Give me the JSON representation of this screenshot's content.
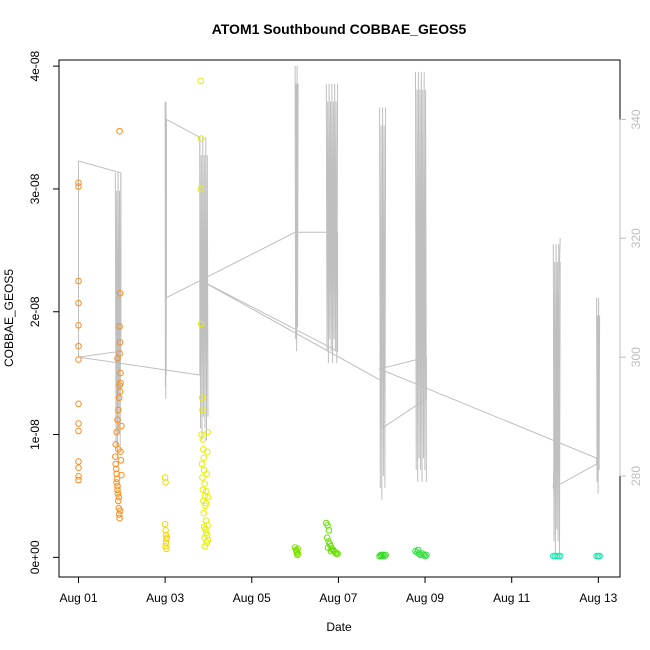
{
  "chart_data": {
    "type": "scatter",
    "title": "ATOM1 Southbound COBBAE_GEOS5",
    "xlabel": "Date",
    "ylabel": "COBBAE_GEOS5",
    "x_ticks": [
      "Aug 01",
      "Aug 03",
      "Aug 05",
      "Aug 07",
      "Aug 09",
      "Aug 11",
      "Aug 13"
    ],
    "x_tick_days": [
      1,
      3,
      5,
      7,
      9,
      11,
      13
    ],
    "xlim_days": [
      0.55,
      13.5
    ],
    "y_ticks": [
      "0e+00",
      "1e-08",
      "2e-08",
      "3e-08",
      "4e-08"
    ],
    "y_tick_values": [
      0,
      1e-08,
      2e-08,
      3e-08,
      4e-08
    ],
    "ylim": [
      -1.6e-09,
      4.05e-08
    ],
    "y2_ticks": [
      "280",
      "300",
      "320",
      "340"
    ],
    "y2_tick_values": [
      280,
      300,
      320,
      340
    ],
    "y2lim": [
      263,
      350
    ],
    "grid": false,
    "colors": {
      "line": "#bfbfbf",
      "axis": "#000000",
      "right_axis": "#bdbdbd"
    },
    "series": [
      {
        "color": "#ff8c1a",
        "points": [
          [
            1.0,
            3.05e-08
          ],
          [
            1.0,
            3.02e-08
          ],
          [
            1.0,
            2.25e-08
          ],
          [
            1.0,
            2.07e-08
          ],
          [
            1.0,
            1.89e-08
          ],
          [
            1.0,
            1.72e-08
          ],
          [
            1.0,
            1.61e-08
          ],
          [
            1.0,
            1.25e-08
          ],
          [
            1.0,
            1.09e-08
          ],
          [
            1.0,
            1.03e-08
          ],
          [
            1.0,
            7.8e-09
          ],
          [
            1.0,
            7.3e-09
          ],
          [
            1.0,
            6.6e-09
          ],
          [
            1.0,
            6.3e-09
          ],
          [
            1.85,
            8.2e-09
          ],
          [
            1.86,
            7.6e-09
          ],
          [
            1.87,
            7.2e-09
          ],
          [
            1.88,
            6.8e-09
          ],
          [
            1.89,
            6.4e-09
          ],
          [
            1.9,
            5.8e-09
          ],
          [
            1.91,
            5.2e-09
          ],
          [
            1.92,
            4.6e-09
          ],
          [
            1.93,
            4e-09
          ],
          [
            1.94,
            3.5e-09
          ],
          [
            1.95,
            3.2e-09
          ],
          [
            1.86,
            9.2e-09
          ],
          [
            1.88,
            1.02e-08
          ],
          [
            1.9,
            1.12e-08
          ],
          [
            1.92,
            1.2e-08
          ],
          [
            1.94,
            1.3e-08
          ],
          [
            1.95,
            1.4e-08
          ],
          [
            1.96,
            1.35e-08
          ],
          [
            1.97,
            1.5e-08
          ],
          [
            1.9,
            1.62e-08
          ],
          [
            1.95,
            1.66e-08
          ],
          [
            1.96,
            1.75e-08
          ],
          [
            1.95,
            1.88e-08
          ],
          [
            1.96,
            2.15e-08
          ],
          [
            1.95,
            3.47e-08
          ],
          [
            1.97,
            8.6e-09
          ],
          [
            1.98,
            7.9e-09
          ],
          [
            1.88,
            6.1e-09
          ],
          [
            1.9,
            5.5e-09
          ],
          [
            1.93,
            4.9e-09
          ],
          [
            1.96,
            3.8e-09
          ],
          [
            1.99,
            6.7e-09
          ],
          [
            1.99,
            1.07e-08
          ],
          [
            1.97,
            1.42e-08
          ],
          [
            1.92,
            8.8e-09
          ]
        ]
      },
      {
        "color": "#f5d800",
        "points": [
          [
            3.0,
            6.5e-09
          ],
          [
            3.01,
            6.1e-09
          ],
          [
            3.0,
            2.7e-09
          ],
          [
            3.01,
            2.2e-09
          ],
          [
            3.02,
            1.8e-09
          ],
          [
            3.03,
            1.5e-09
          ],
          [
            3.02,
            1.2e-09
          ],
          [
            3.01,
            9e-10
          ],
          [
            3.03,
            7e-10
          ],
          [
            3.04,
            1.6e-09
          ]
        ]
      },
      {
        "color": "#e6f000",
        "points": [
          [
            3.82,
            3.88e-08
          ],
          [
            3.83,
            3.41e-08
          ],
          [
            3.82,
            3e-08
          ],
          [
            3.83,
            1.9e-08
          ],
          [
            3.85,
            1.3e-08
          ],
          [
            3.86,
            1.2e-08
          ],
          [
            3.84,
            1e-08
          ],
          [
            3.87,
            9.6e-09
          ],
          [
            3.88,
            8.8e-09
          ],
          [
            3.89,
            8.1e-09
          ],
          [
            3.85,
            7.6e-09
          ],
          [
            3.9,
            7.1e-09
          ],
          [
            3.86,
            6.5e-09
          ],
          [
            3.91,
            6e-09
          ],
          [
            3.87,
            5.5e-09
          ],
          [
            3.92,
            5e-09
          ],
          [
            3.88,
            4.6e-09
          ],
          [
            3.93,
            4.2e-09
          ],
          [
            3.89,
            3.6e-09
          ],
          [
            3.94,
            3e-09
          ],
          [
            3.9,
            2.5e-09
          ],
          [
            3.95,
            2e-09
          ],
          [
            3.91,
            1.6e-09
          ],
          [
            3.96,
            1.2e-09
          ],
          [
            3.92,
            9e-10
          ],
          [
            3.97,
            1.8e-09
          ],
          [
            3.93,
            2.3e-09
          ],
          [
            3.98,
            2.6e-09
          ],
          [
            3.94,
            4.4e-09
          ],
          [
            3.99,
            1.4e-09
          ],
          [
            3.95,
            5.4e-09
          ],
          [
            3.96,
            6.8e-09
          ],
          [
            3.97,
            8.6e-09
          ],
          [
            3.98,
            1.02e-08
          ],
          [
            3.99,
            4.9e-09
          ]
        ]
      },
      {
        "color": "#7fe000",
        "points": [
          [
            6.0,
            8e-10
          ],
          [
            6.02,
            6e-10
          ],
          [
            6.04,
            4e-10
          ],
          [
            6.05,
            2e-10
          ],
          [
            6.07,
            3e-10
          ],
          [
            6.03,
            5e-10
          ],
          [
            6.06,
            7e-10
          ]
        ]
      },
      {
        "color": "#66e000",
        "points": [
          [
            6.72,
            2.8e-09
          ],
          [
            6.75,
            2.6e-09
          ],
          [
            6.78,
            2.2e-09
          ],
          [
            6.74,
            1.6e-09
          ],
          [
            6.77,
            1.3e-09
          ],
          [
            6.8,
            1.1e-09
          ],
          [
            6.82,
            9e-10
          ],
          [
            6.85,
            7e-10
          ],
          [
            6.88,
            6e-10
          ],
          [
            6.9,
            5e-10
          ],
          [
            6.93,
            4e-10
          ],
          [
            6.95,
            3e-10
          ],
          [
            6.98,
            3e-10
          ],
          [
            6.76,
            8e-10
          ],
          [
            6.83,
            5e-10
          ]
        ]
      },
      {
        "color": "#33dd22",
        "points": [
          [
            7.95,
            1e-10
          ],
          [
            7.98,
            2e-10
          ],
          [
            8.0,
            1e-10
          ],
          [
            8.03,
            2e-10
          ],
          [
            8.06,
            1e-10
          ],
          [
            8.09,
            2e-10
          ]
        ]
      },
      {
        "color": "#2ee03a",
        "points": [
          [
            8.78,
            5e-10
          ],
          [
            8.82,
            4e-10
          ],
          [
            8.86,
            3e-10
          ],
          [
            8.9,
            2e-10
          ],
          [
            8.94,
            3e-10
          ],
          [
            8.97,
            2e-10
          ],
          [
            9.0,
            1e-10
          ],
          [
            9.03,
            2e-10
          ],
          [
            8.84,
            6e-10
          ]
        ]
      },
      {
        "color": "#1ee8b0",
        "points": [
          [
            11.96,
            1e-10
          ],
          [
            12.0,
            1e-10
          ],
          [
            12.04,
            1e-10
          ],
          [
            12.08,
            1e-10
          ],
          [
            12.12,
            1e-10
          ],
          [
            12.96,
            1e-10
          ],
          [
            13.0,
            1e-10
          ],
          [
            13.03,
            1e-10
          ]
        ]
      }
    ],
    "secondary_line": {
      "segments": [
        {
          "x_from": 1.0,
          "x_to": 1.0,
          "lo": 300,
          "hi": 333
        },
        {
          "x_from": 1.85,
          "x_to": 1.98,
          "lo": 283,
          "hi": 331
        },
        {
          "x_from": 3.0,
          "x_to": 3.03,
          "lo": 293,
          "hi": 343
        },
        {
          "x_from": 3.8,
          "x_to": 3.99,
          "lo": 286,
          "hi": 337
        },
        {
          "x_from": 6.0,
          "x_to": 6.07,
          "lo": 301,
          "hi": 349
        },
        {
          "x_from": 6.72,
          "x_to": 6.98,
          "lo": 299,
          "hi": 346
        },
        {
          "x_from": 7.95,
          "x_to": 8.09,
          "lo": 276,
          "hi": 342
        },
        {
          "x_from": 8.78,
          "x_to": 9.03,
          "lo": 279,
          "hi": 348
        },
        {
          "x_from": 11.96,
          "x_to": 12.12,
          "lo": 267,
          "hi": 319
        },
        {
          "x_from": 12.96,
          "x_to": 13.03,
          "lo": 277,
          "hi": 310
        }
      ],
      "connectors": [
        [
          1.0,
          333
        ],
        [
          1.98,
          331
        ],
        [
          1.98,
          301
        ],
        [
          1.0,
          300
        ],
        [
          1.0,
          300
        ],
        [
          3.8,
          297
        ],
        [
          3.8,
          337
        ],
        [
          3.03,
          340
        ],
        [
          3.03,
          310
        ],
        [
          6.0,
          321
        ],
        [
          6.98,
          321
        ],
        [
          6.98,
          301
        ],
        [
          3.8,
          313
        ],
        [
          8.0,
          296
        ],
        [
          8.0,
          288
        ],
        [
          9.03,
          293
        ],
        [
          9.03,
          300
        ],
        [
          7.95,
          298
        ],
        [
          12.96,
          283
        ],
        [
          12.96,
          282
        ],
        [
          11.96,
          278
        ],
        [
          12.12,
          320
        ]
      ]
    }
  }
}
